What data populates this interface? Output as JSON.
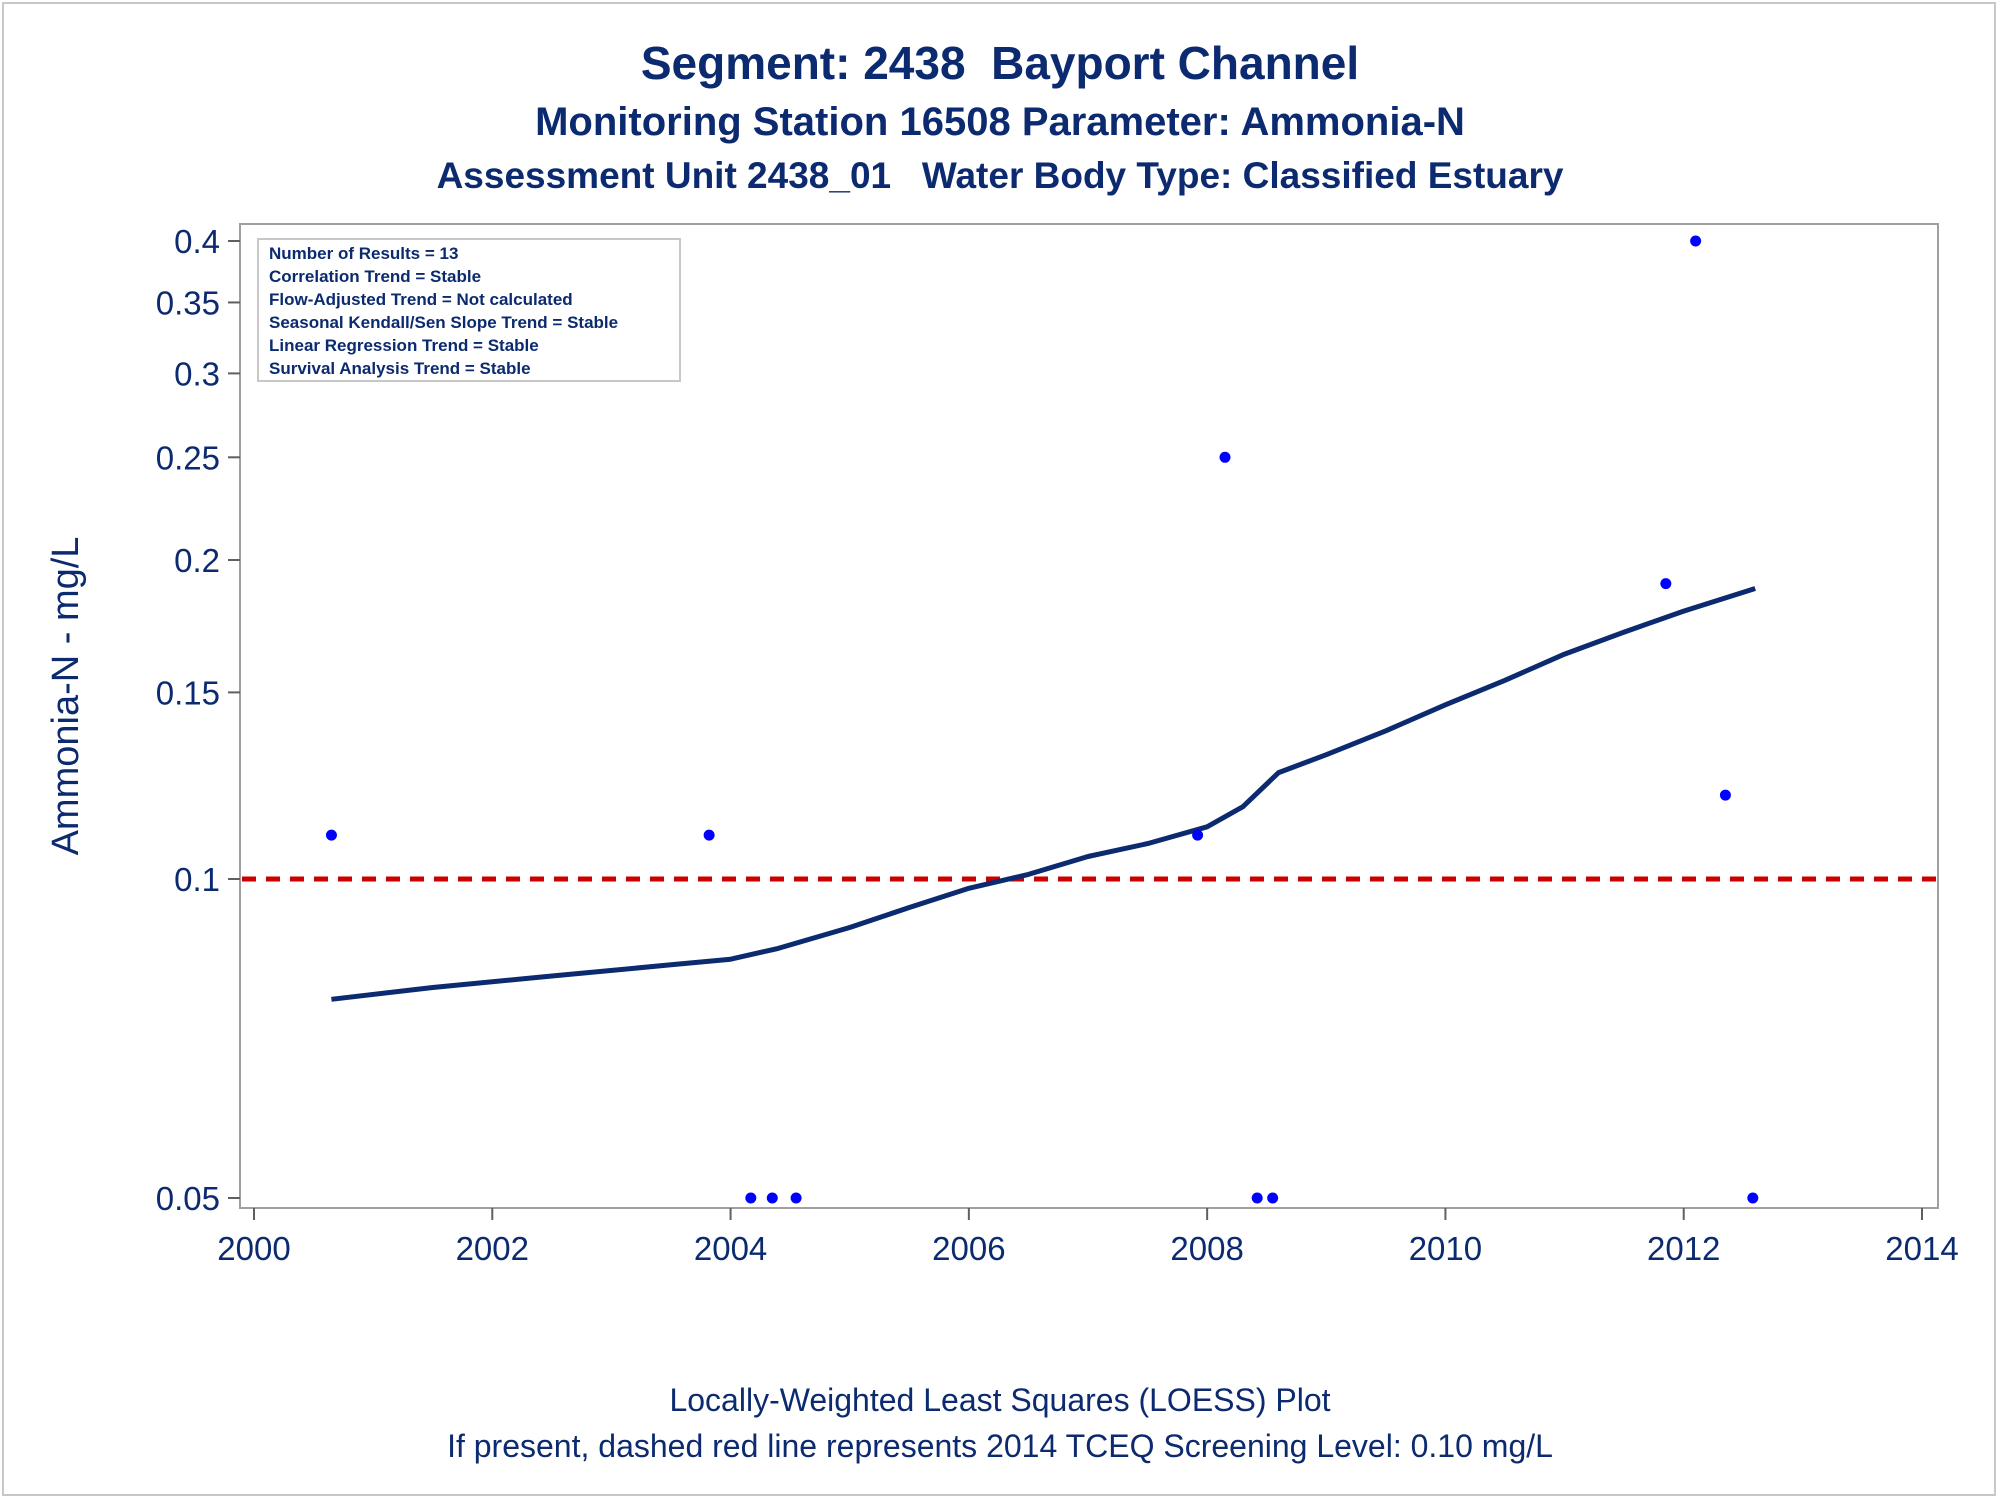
{
  "chart_data": {
    "type": "scatter",
    "title": "Segment: 2438  Bayport Channel",
    "subtitle": "Monitoring Station 16508 Parameter: Ammonia-N",
    "subtitle2": "Assessment Unit 2438_01   Water Body Type: Classified Estuary",
    "xlabel": "",
    "ylabel": "Ammonia-N - mg/L",
    "y_scale": "log",
    "xlim": [
      2000,
      2014
    ],
    "ylim": [
      0.05,
      0.4
    ],
    "x_ticks": [
      2000,
      2002,
      2004,
      2006,
      2008,
      2010,
      2012,
      2014
    ],
    "y_ticks": [
      0.05,
      0.1,
      0.15,
      0.2,
      0.25,
      0.3,
      0.35,
      0.4
    ],
    "y_tick_labels": [
      "0.05",
      "0.1",
      "0.15",
      "0.2",
      "0.25",
      "0.3",
      "0.35",
      "0.4"
    ],
    "points": {
      "x": [
        2000.65,
        2003.82,
        2004.17,
        2004.35,
        2004.55,
        2007.92,
        2008.15,
        2008.42,
        2008.55,
        2011.85,
        2012.1,
        2012.35,
        2012.58
      ],
      "y": [
        0.11,
        0.11,
        0.05,
        0.05,
        0.05,
        0.11,
        0.25,
        0.05,
        0.05,
        0.19,
        0.4,
        0.12,
        0.05
      ],
      "color": "#0000ff"
    },
    "loess": {
      "color": "#0b2a6f",
      "x": [
        2000.65,
        2001.5,
        2002.5,
        2003.5,
        2004.0,
        2004.4,
        2005.0,
        2005.5,
        2006.0,
        2006.5,
        2007.0,
        2007.5,
        2008.0,
        2008.3,
        2008.6,
        2009.0,
        2009.5,
        2010.0,
        2010.5,
        2011.0,
        2011.5,
        2012.0,
        2012.6
      ],
      "y": [
        0.077,
        0.079,
        0.081,
        0.083,
        0.084,
        0.086,
        0.09,
        0.094,
        0.098,
        0.101,
        0.105,
        0.108,
        0.112,
        0.117,
        0.126,
        0.131,
        0.138,
        0.146,
        0.154,
        0.163,
        0.171,
        0.179,
        0.188
      ]
    },
    "reference_line": {
      "y": 0.1,
      "color": "#cc0000",
      "style": "dashed"
    },
    "annotations": [
      "Number of Results = 13",
      "Correlation Trend = Stable",
      "Flow-Adjusted Trend = Not calculated",
      "Seasonal Kendall/Sen Slope Trend = Stable",
      "Linear Regression Trend = Stable",
      "Survival Analysis Trend = Stable"
    ],
    "grid": false
  },
  "footer": {
    "line1": "Locally-Weighted Least Squares (LOESS) Plot",
    "line2": "If present, dashed red line represents 2014 TCEQ Screening Level: 0.10 mg/L"
  }
}
